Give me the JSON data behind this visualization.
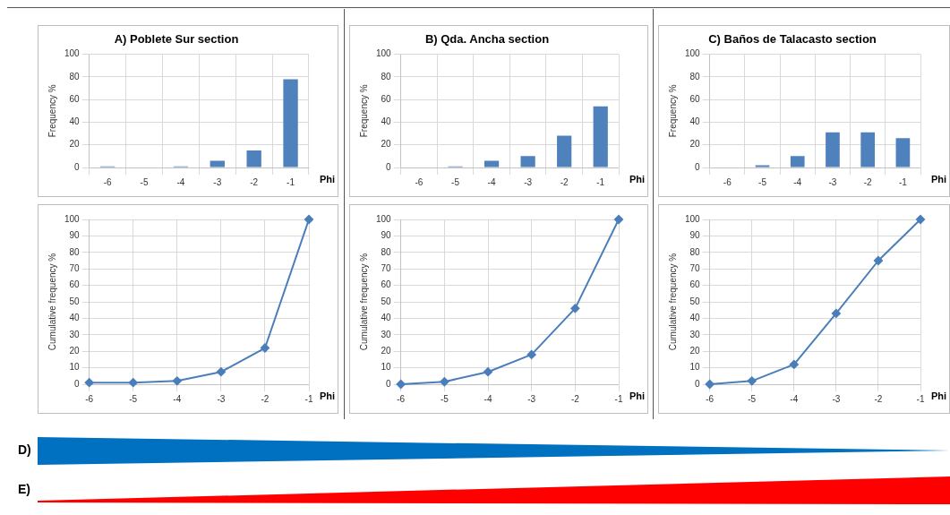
{
  "chart_data": [
    {
      "type": "bar",
      "title": "A) Poblete Sur section",
      "ylabel": "Frequency %",
      "xlabel": "Phi",
      "categories": [
        "-6",
        "-5",
        "-4",
        "-3",
        "-2",
        "-1"
      ],
      "values": [
        1,
        0,
        1,
        6,
        15,
        78
      ],
      "color": "#4f81bd",
      "ylim": [
        0,
        100
      ],
      "yticks": [
        0,
        20,
        40,
        60,
        80,
        100
      ],
      "grid": true
    },
    {
      "type": "bar",
      "title": "B) Qda. Ancha section",
      "ylabel": "Frequency %",
      "xlabel": "Phi",
      "categories": [
        "-6",
        "-5",
        "-4",
        "-3",
        "-2",
        "-1"
      ],
      "values": [
        0,
        1,
        6,
        10,
        28,
        54
      ],
      "color": "#4f81bd",
      "ylim": [
        0,
        100
      ],
      "yticks": [
        0,
        20,
        40,
        60,
        80,
        100
      ],
      "grid": true
    },
    {
      "type": "bar",
      "title": "C) Baños de Talacasto section",
      "ylabel": "Frequency %",
      "xlabel": "Phi",
      "categories": [
        "-6",
        "-5",
        "-4",
        "-3",
        "-2",
        "-1"
      ],
      "values": [
        0,
        2,
        10,
        31,
        31,
        26
      ],
      "color": "#4f81bd",
      "ylim": [
        0,
        100
      ],
      "yticks": [
        0,
        20,
        40,
        60,
        80,
        100
      ],
      "grid": true
    },
    {
      "type": "line",
      "ylabel": "Cumulative frequency %",
      "xlabel": "Phi",
      "x": [
        -6,
        -5,
        -4,
        -3,
        -2,
        -1
      ],
      "values": [
        1,
        1,
        2,
        7.5,
        22,
        100
      ],
      "color": "#4a7ebb",
      "xlim": [
        -6,
        -1
      ],
      "xticks": [
        -6,
        -5,
        -4,
        -3,
        -2,
        -1
      ],
      "ylim": [
        0,
        100
      ],
      "yticks": [
        0,
        10,
        20,
        30,
        40,
        50,
        60,
        70,
        80,
        90,
        100
      ],
      "grid": true,
      "marker": "diamond"
    },
    {
      "type": "line",
      "ylabel": "Cumulative frequency %",
      "xlabel": "Phi",
      "x": [
        -6,
        -5,
        -4,
        -3,
        -2,
        -1
      ],
      "values": [
        0,
        1.5,
        7.5,
        18,
        46,
        100
      ],
      "color": "#4a7ebb",
      "xlim": [
        -6,
        -1
      ],
      "xticks": [
        -6,
        -5,
        -4,
        -3,
        -2,
        -1
      ],
      "ylim": [
        0,
        100
      ],
      "yticks": [
        0,
        10,
        20,
        30,
        40,
        50,
        60,
        70,
        80,
        90,
        100
      ],
      "grid": true,
      "marker": "diamond"
    },
    {
      "type": "line",
      "ylabel": "Cumulative frequency %",
      "xlabel": "Phi",
      "x": [
        -6,
        -5,
        -4,
        -3,
        -2,
        -1
      ],
      "values": [
        0,
        2,
        12,
        43,
        75,
        100
      ],
      "color": "#4a7ebb",
      "xlim": [
        -6,
        -1
      ],
      "xticks": [
        -6,
        -5,
        -4,
        -3,
        -2,
        -1
      ],
      "ylim": [
        0,
        100
      ],
      "yticks": [
        0,
        10,
        20,
        30,
        40,
        50,
        60,
        70,
        80,
        90,
        100
      ],
      "grid": true,
      "marker": "diamond"
    },
    {
      "type": "other",
      "annotations": [
        "D)",
        "E)"
      ]
    }
  ]
}
